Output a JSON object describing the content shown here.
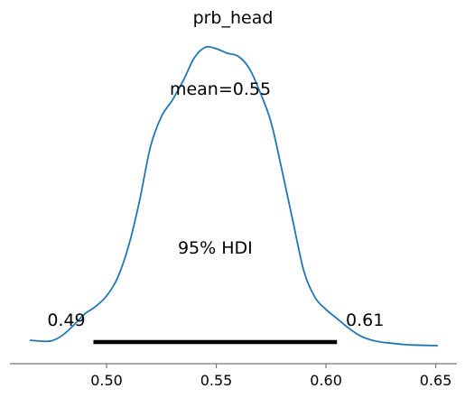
{
  "chart_data": {
    "type": "line",
    "title": "prb_head",
    "xlabel": "",
    "ylabel": "",
    "xlim": [
      0.465,
      0.651
    ],
    "ylim": [
      0,
      1.0
    ],
    "xticks": [
      0.5,
      0.55,
      0.6,
      0.65
    ],
    "xtick_labels": [
      "0.50",
      "0.55",
      "0.60",
      "0.65"
    ],
    "grid": false,
    "series": [
      {
        "color": "#1f77b4",
        "x": [
          0.465,
          0.47,
          0.475,
          0.48,
          0.485,
          0.49,
          0.495,
          0.5,
          0.505,
          0.51,
          0.515,
          0.52,
          0.525,
          0.53,
          0.535,
          0.54,
          0.545,
          0.55,
          0.555,
          0.56,
          0.565,
          0.57,
          0.575,
          0.58,
          0.585,
          0.59,
          0.595,
          0.6,
          0.605,
          0.61,
          0.615,
          0.62,
          0.625,
          0.63,
          0.635,
          0.64,
          0.645,
          0.651
        ],
        "y": [
          0.018,
          0.015,
          0.016,
          0.035,
          0.068,
          0.105,
          0.13,
          0.165,
          0.225,
          0.33,
          0.48,
          0.66,
          0.76,
          0.815,
          0.88,
          0.955,
          0.99,
          0.985,
          0.97,
          0.96,
          0.92,
          0.84,
          0.74,
          0.58,
          0.41,
          0.245,
          0.16,
          0.12,
          0.09,
          0.06,
          0.035,
          0.02,
          0.012,
          0.008,
          0.004,
          0.002,
          0.001,
          0.0
        ]
      }
    ],
    "annotations": {
      "mean_text": "mean=0.55",
      "hdi_text": "95% HDI",
      "hdi_low": 0.494,
      "hdi_high": 0.605,
      "hdi_low_label": "0.49",
      "hdi_high_label": "0.61"
    }
  }
}
